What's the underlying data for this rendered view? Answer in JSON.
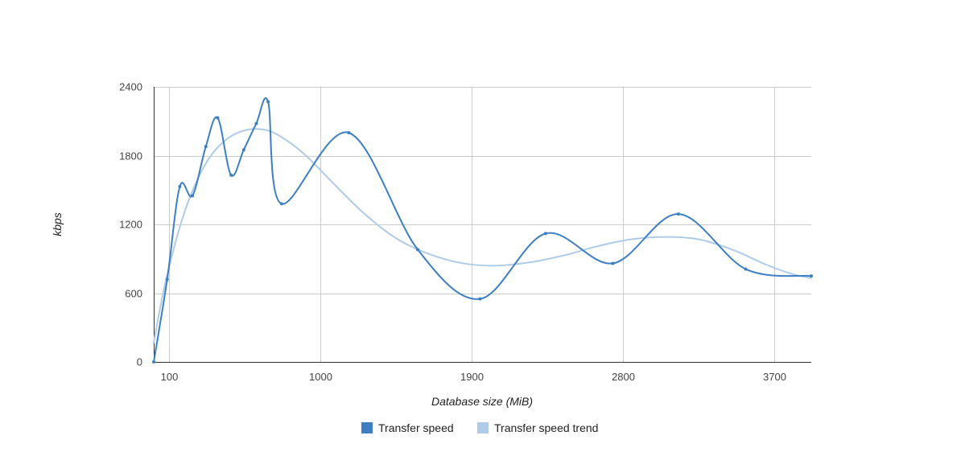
{
  "chart_data": {
    "type": "line",
    "title": "",
    "xlabel": "Database size (MiB)",
    "ylabel": "kbps",
    "xlim": [
      10,
      3920
    ],
    "ylim": [
      0,
      2400
    ],
    "x_ticks": [
      100,
      1000,
      1900,
      2800,
      3700
    ],
    "y_ticks": [
      0,
      600,
      1200,
      1800,
      2400
    ],
    "grid": true,
    "legend_position": "bottom",
    "series": [
      {
        "name": "Transfer speed",
        "color": "#3d7fc2",
        "curve": "smooth",
        "markers": true,
        "points": [
          [
            10,
            0
          ],
          [
            90,
            720
          ],
          [
            165,
            1530
          ],
          [
            240,
            1450
          ],
          [
            320,
            1880
          ],
          [
            390,
            2130
          ],
          [
            470,
            1630
          ],
          [
            545,
            1850
          ],
          [
            620,
            2080
          ],
          [
            690,
            2270
          ],
          [
            770,
            1380
          ],
          [
            1170,
            2000
          ],
          [
            1580,
            980
          ],
          [
            1950,
            550
          ],
          [
            2340,
            1120
          ],
          [
            2740,
            860
          ],
          [
            3130,
            1290
          ],
          [
            3530,
            810
          ],
          [
            3920,
            750
          ]
        ]
      },
      {
        "name": "Transfer speed trend",
        "color": "#aecbe8",
        "curve": "smooth",
        "markers": false,
        "points": [
          [
            10,
            170
          ],
          [
            60,
            560
          ],
          [
            110,
            880
          ],
          [
            180,
            1250
          ],
          [
            260,
            1560
          ],
          [
            350,
            1800
          ],
          [
            450,
            1950
          ],
          [
            550,
            2020
          ],
          [
            650,
            2030
          ],
          [
            750,
            1980
          ],
          [
            900,
            1820
          ],
          [
            1050,
            1600
          ],
          [
            1250,
            1310
          ],
          [
            1450,
            1080
          ],
          [
            1650,
            940
          ],
          [
            1850,
            860
          ],
          [
            2050,
            840
          ],
          [
            2250,
            870
          ],
          [
            2450,
            930
          ],
          [
            2650,
            1010
          ],
          [
            2850,
            1070
          ],
          [
            3050,
            1090
          ],
          [
            3250,
            1070
          ],
          [
            3450,
            980
          ],
          [
            3650,
            850
          ],
          [
            3800,
            770
          ],
          [
            3920,
            730
          ]
        ]
      }
    ]
  }
}
